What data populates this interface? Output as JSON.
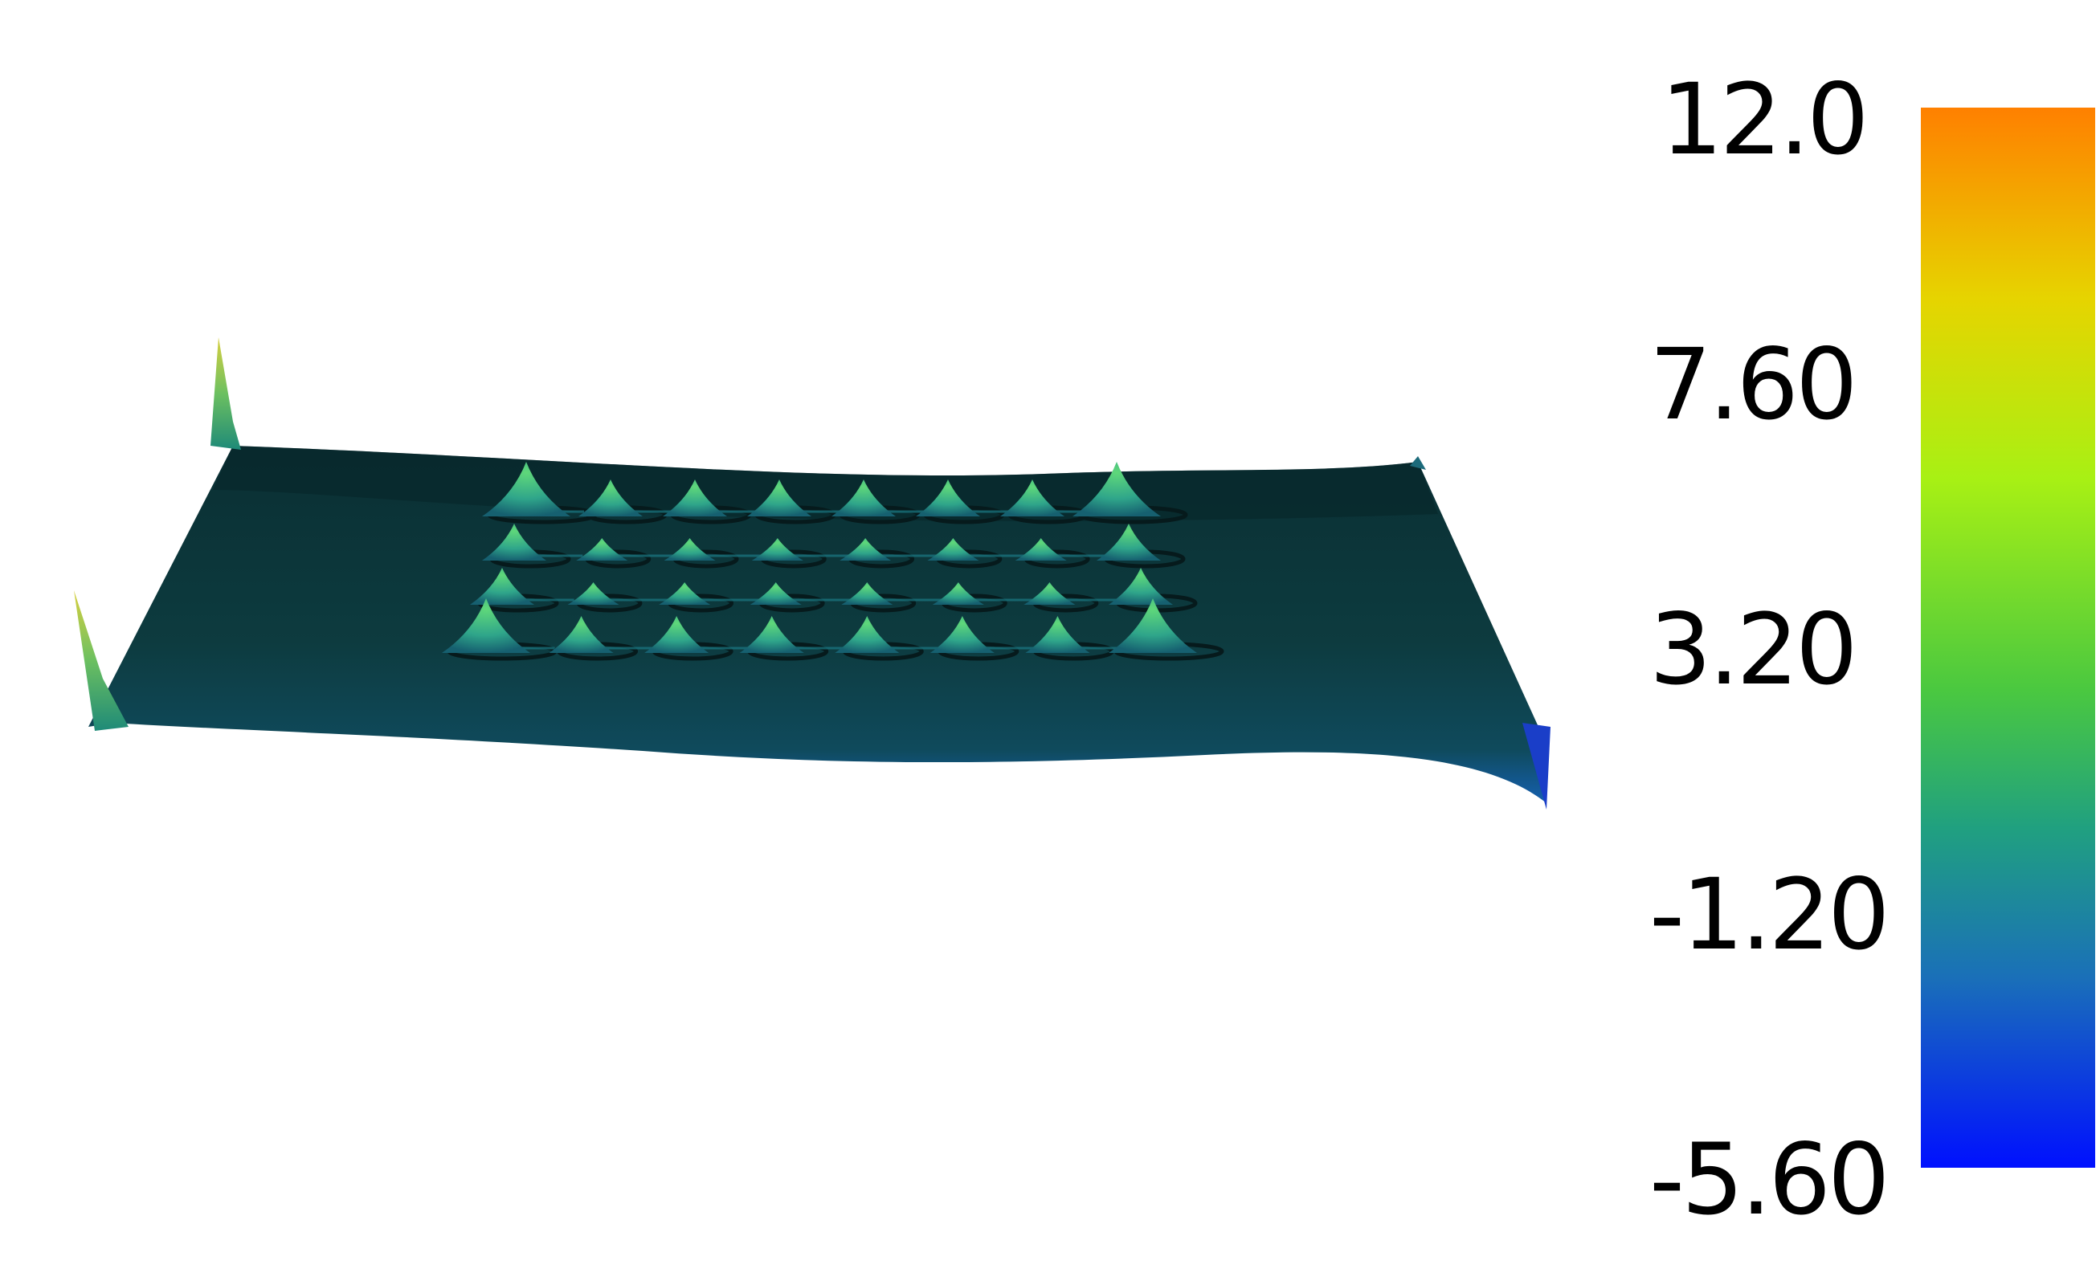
{
  "scalar_bar": {
    "ticks": [
      "12.0",
      "7.60",
      "3.20",
      "-1.20",
      "-5.60"
    ],
    "range": [
      -5.6,
      12.0
    ],
    "colors": {
      "top": "#ff8000",
      "upper": "#e6d400",
      "mid_high": "#a8f014",
      "mid": "#4ac840",
      "mid_low": "#20a080",
      "low": "#1a70b8",
      "bottom": "#0010ff"
    }
  },
  "surface": {
    "base_color": "#0d3b3f",
    "peak_color": "#3dc08a",
    "edge_low_color": "#1560b0",
    "spike_color": "#b8c848",
    "peak_rows": 4,
    "peak_cols": 8
  }
}
